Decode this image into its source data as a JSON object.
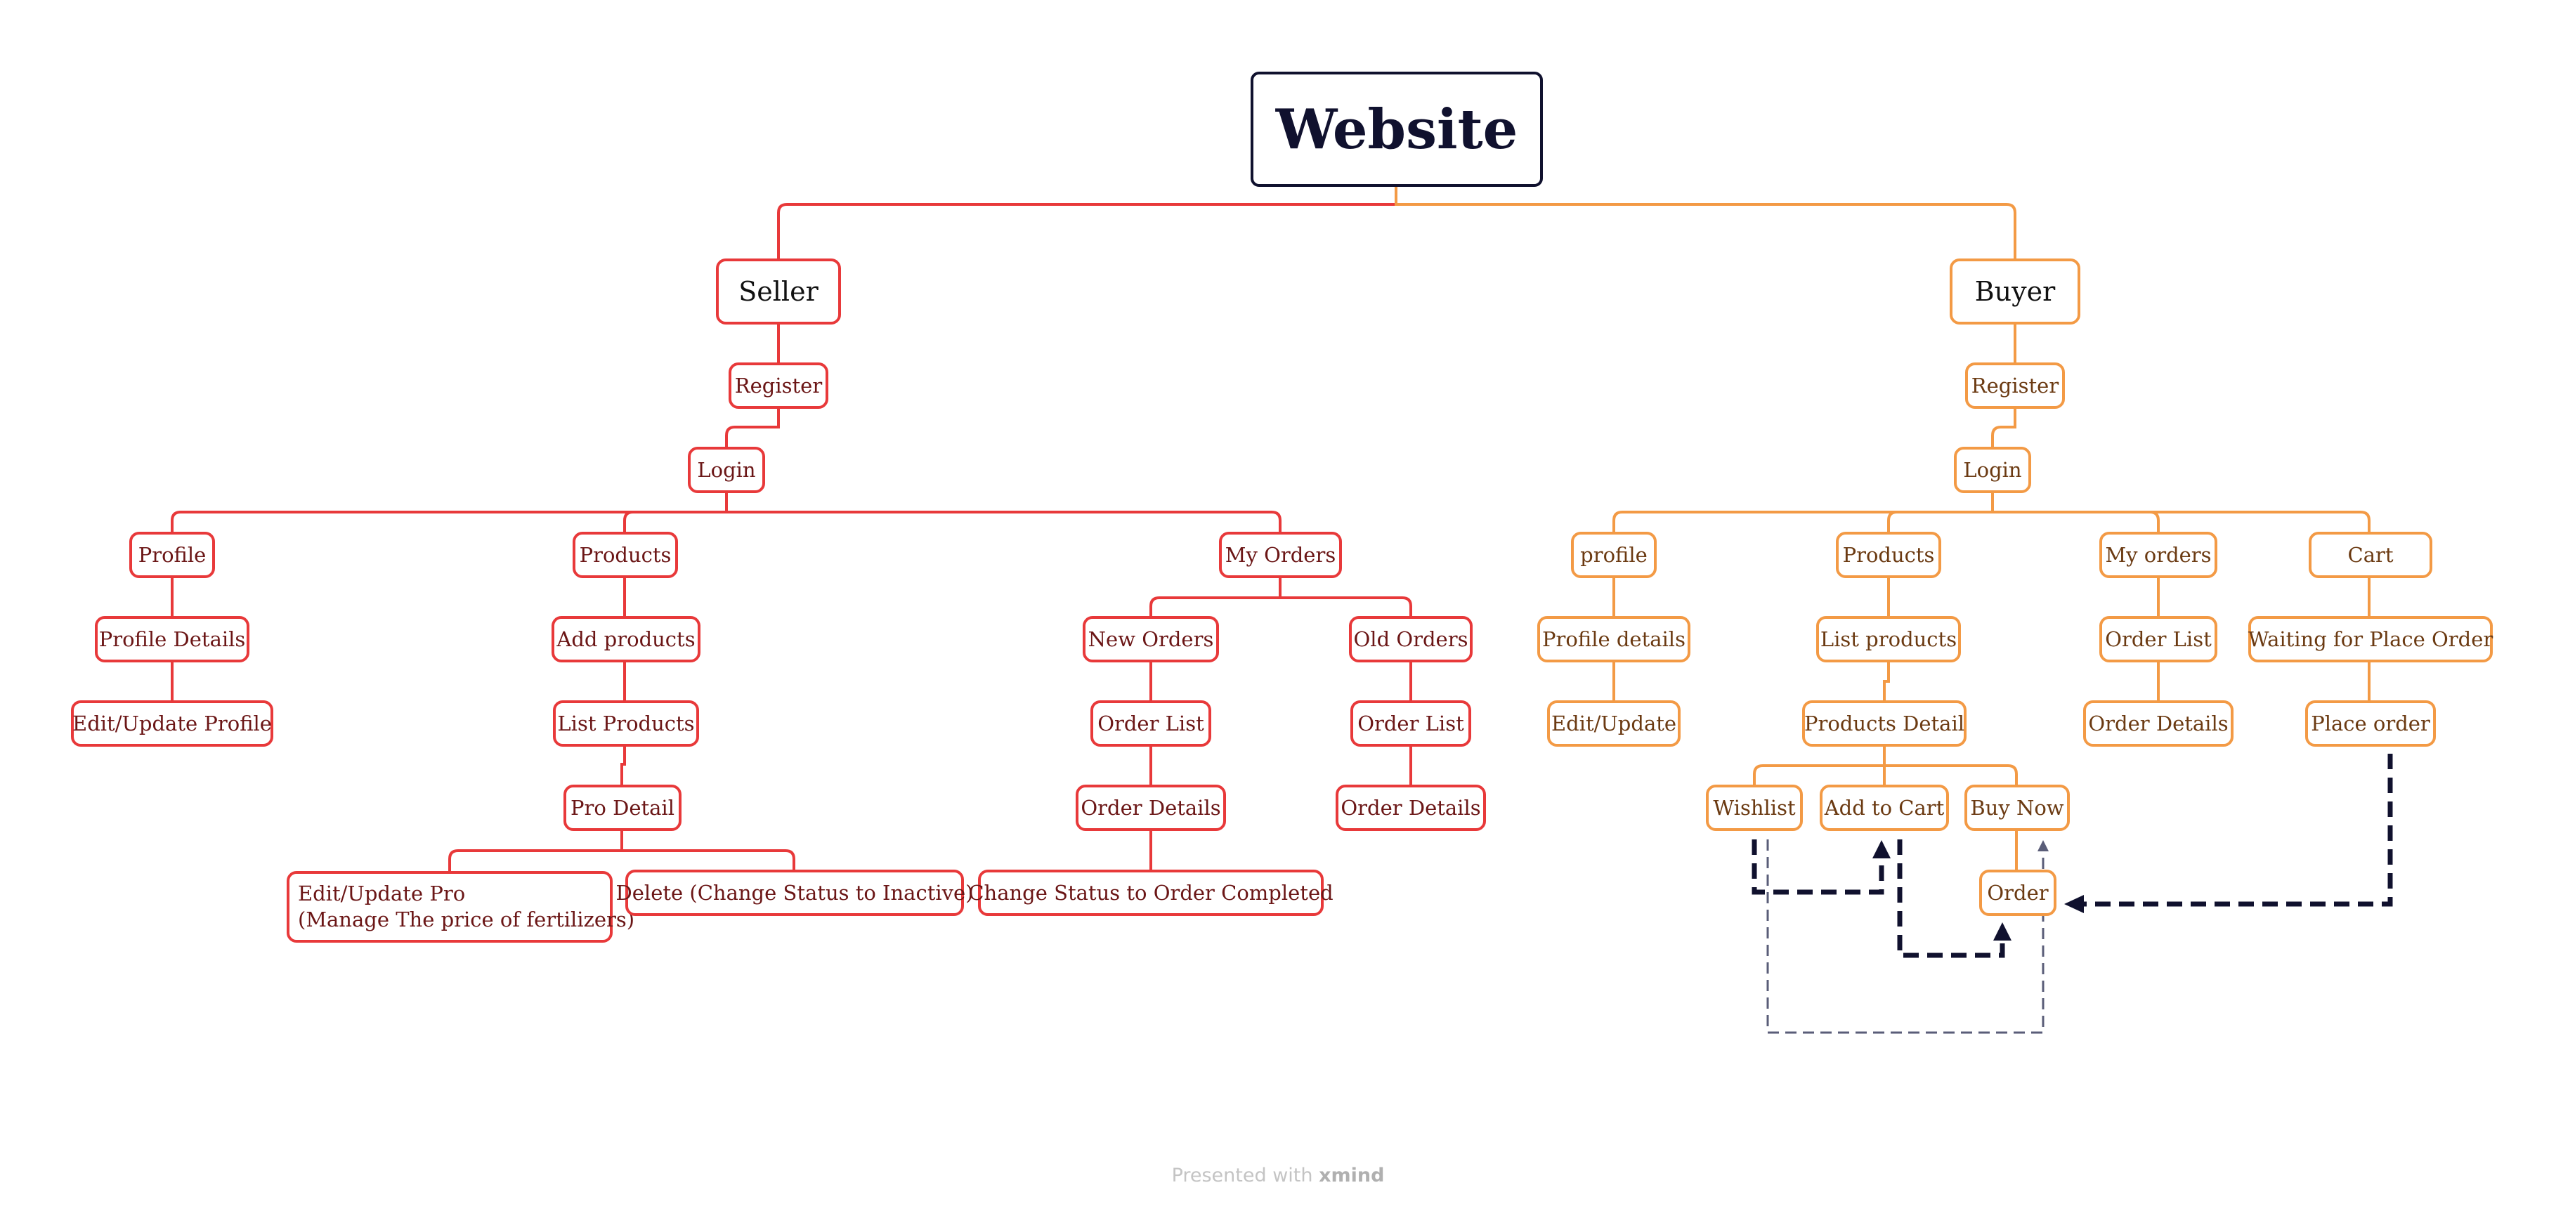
{
  "colors": {
    "root": "#10112e",
    "seller": "#e8393a",
    "buyer": "#f39a45",
    "relation": "#10112e"
  },
  "root": "Website",
  "seller": {
    "label": "Seller",
    "register": "Register",
    "login": "Login",
    "profile": {
      "label": "Profile",
      "details": "Profile Details",
      "edit": "Edit/Update Profile"
    },
    "products": {
      "label": "Products",
      "add": "Add products",
      "list": "List Products",
      "detail": "Pro Detail",
      "edit_line1": "Edit/Update Pro",
      "edit_line2": "(Manage The price of fertilizers)",
      "delete": "Delete (Change Status to Inactive)"
    },
    "orders": {
      "label": "My Orders",
      "new": {
        "label": "New Orders",
        "list": "Order List",
        "details": "Order Details",
        "complete": "Change Status to Order Completed"
      },
      "old": {
        "label": "Old Orders",
        "list": "Order List",
        "details": "Order Details"
      }
    }
  },
  "buyer": {
    "label": "Buyer",
    "register": "Register",
    "login": "Login",
    "profile": {
      "label": "profile",
      "details": "Profile details",
      "edit": "Edit/Update"
    },
    "products": {
      "label": "Products",
      "list": "List products",
      "detail": "Products Detail",
      "wishlist": "Wishlist",
      "add_to_cart": "Add to Cart",
      "buy_now": "Buy Now",
      "order": "Order"
    },
    "orders": {
      "label": "My orders",
      "list": "Order List",
      "details": "Order Details"
    },
    "cart": {
      "label": "Cart",
      "waiting": "Waiting for Place Order",
      "place": "Place order"
    }
  },
  "footer": {
    "prefix": "Presented with",
    "brand": "xmind"
  }
}
